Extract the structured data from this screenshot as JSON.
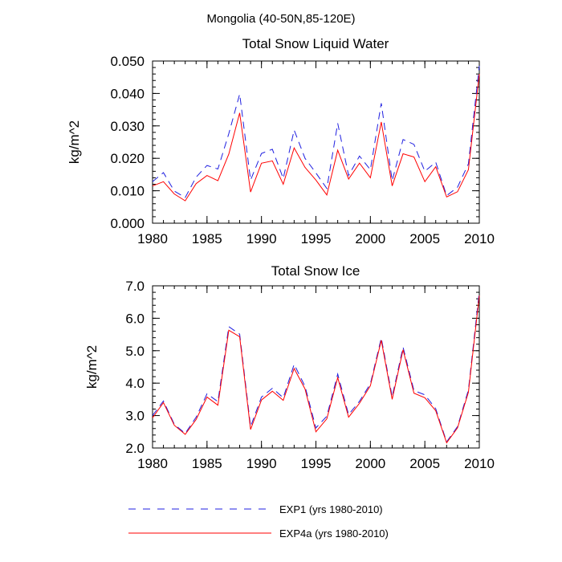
{
  "figure": {
    "suptitle": "Mongolia (40-50N,85-120E)"
  },
  "legend": {
    "entries": [
      {
        "label": "EXP1 (yrs 1980-2010)",
        "color": "#1f1fe0",
        "dash": "dashed"
      },
      {
        "label": "EXP4a (yrs 1980-2010)",
        "color": "#ff0000",
        "dash": "solid"
      }
    ]
  },
  "chart_data": [
    {
      "type": "line",
      "title": "Total Snow Liquid Water",
      "xlabel": "",
      "ylabel": "kg/m^2",
      "xlim": [
        1980,
        2010
      ],
      "ylim": [
        0.0,
        0.05
      ],
      "xticks": [
        1980,
        1985,
        1990,
        1995,
        2000,
        2005,
        2010
      ],
      "xtick_labels": [
        "1980",
        "1985",
        "1990",
        "1995",
        "2000",
        "2005",
        "2010"
      ],
      "yticks": [
        0.0,
        0.01,
        0.02,
        0.03,
        0.04,
        0.05
      ],
      "ytick_labels": [
        "0.000",
        "0.010",
        "0.020",
        "0.030",
        "0.040",
        "0.050"
      ],
      "x": [
        1980,
        1981,
        1982,
        1983,
        1984,
        1985,
        1986,
        1987,
        1988,
        1989,
        1990,
        1991,
        1992,
        1993,
        1994,
        1995,
        1996,
        1997,
        1998,
        1999,
        2000,
        2001,
        2002,
        2003,
        2004,
        2005,
        2006,
        2007,
        2008,
        2009,
        2010
      ],
      "series": [
        {
          "name": "EXP1 (yrs 1980-2010)",
          "color": "#1f1fe0",
          "dash": "dashed",
          "values": [
            0.0128,
            0.0156,
            0.0099,
            0.0079,
            0.0142,
            0.0178,
            0.0167,
            0.0276,
            0.0398,
            0.0133,
            0.0215,
            0.0228,
            0.0138,
            0.0287,
            0.02,
            0.0155,
            0.0107,
            0.0308,
            0.0147,
            0.0207,
            0.0165,
            0.037,
            0.0131,
            0.0258,
            0.0243,
            0.016,
            0.0188,
            0.0085,
            0.0111,
            0.0183,
            0.0485
          ]
        },
        {
          "name": "EXP4a (yrs 1980-2010)",
          "color": "#ff0000",
          "dash": "solid",
          "values": [
            0.0115,
            0.0128,
            0.009,
            0.0069,
            0.0122,
            0.0147,
            0.0131,
            0.0213,
            0.034,
            0.0096,
            0.0185,
            0.0192,
            0.012,
            0.0232,
            0.0172,
            0.0133,
            0.0087,
            0.0225,
            0.0136,
            0.0185,
            0.014,
            0.0312,
            0.0115,
            0.0214,
            0.0204,
            0.0128,
            0.0174,
            0.0081,
            0.0097,
            0.0165,
            0.046
          ]
        }
      ]
    },
    {
      "type": "line",
      "title": "Total Snow Ice",
      "xlabel": "",
      "ylabel": "kg/m^2",
      "xlim": [
        1980,
        2010
      ],
      "ylim": [
        2.0,
        7.0
      ],
      "xticks": [
        1980,
        1985,
        1990,
        1995,
        2000,
        2005,
        2010
      ],
      "xtick_labels": [
        "1980",
        "1985",
        "1990",
        "1995",
        "2000",
        "2005",
        "2010"
      ],
      "yticks": [
        2.0,
        3.0,
        4.0,
        5.0,
        6.0,
        7.0
      ],
      "ytick_labels": [
        "2.0",
        "3.0",
        "4.0",
        "5.0",
        "6.0",
        "7.0"
      ],
      "x": [
        1980,
        1981,
        1982,
        1983,
        1984,
        1985,
        1986,
        1987,
        1988,
        1989,
        1990,
        1991,
        1992,
        1993,
        1994,
        1995,
        1996,
        1997,
        1998,
        1999,
        2000,
        2001,
        2002,
        2003,
        2004,
        2005,
        2006,
        2007,
        2008,
        2009,
        2010
      ],
      "series": [
        {
          "name": "EXP1 (yrs 1980-2010)",
          "color": "#1f1fe0",
          "dash": "dashed",
          "values": [
            3.0,
            3.45,
            2.73,
            2.45,
            2.95,
            3.67,
            3.43,
            5.74,
            5.51,
            2.66,
            3.57,
            3.84,
            3.55,
            4.58,
            3.9,
            2.62,
            2.98,
            4.28,
            3.03,
            3.44,
            3.98,
            5.39,
            3.58,
            5.11,
            3.77,
            3.64,
            3.21,
            2.19,
            2.66,
            3.79,
            6.83
          ]
        },
        {
          "name": "EXP4a (yrs 1980-2010)",
          "color": "#ff0000",
          "dash": "solid",
          "values": [
            2.93,
            3.4,
            2.7,
            2.42,
            2.88,
            3.57,
            3.32,
            5.63,
            5.43,
            2.57,
            3.48,
            3.75,
            3.47,
            4.45,
            3.82,
            2.5,
            2.9,
            4.17,
            2.95,
            3.38,
            3.92,
            5.32,
            3.5,
            5.03,
            3.69,
            3.55,
            3.15,
            2.16,
            2.62,
            3.72,
            6.7
          ]
        }
      ]
    }
  ]
}
